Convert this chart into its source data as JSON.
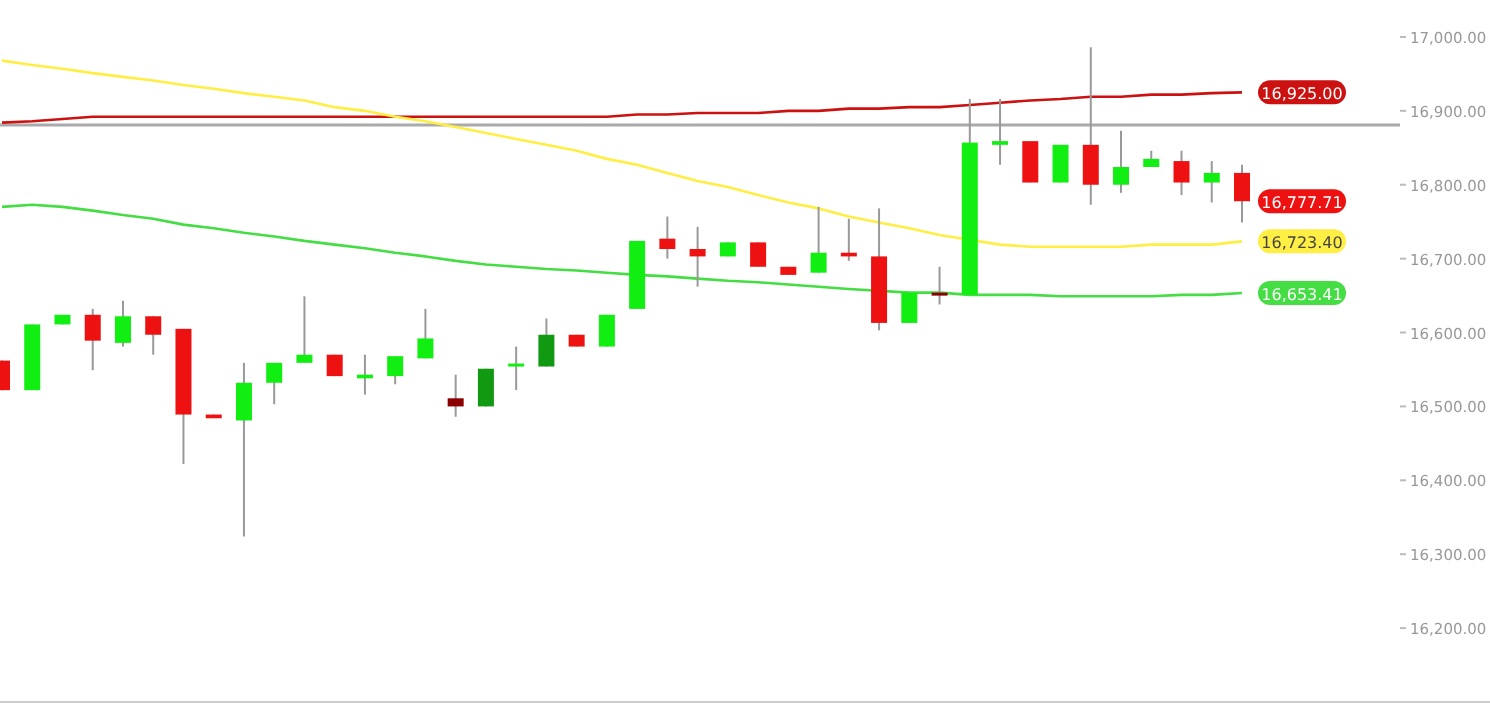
{
  "chart_data": {
    "type": "candlestick",
    "categories": [
      null,
      null,
      null,
      null,
      null,
      null,
      null,
      null,
      null,
      null,
      null,
      null,
      null,
      null,
      null,
      null,
      null,
      null,
      null,
      null,
      null,
      null,
      null,
      null,
      null,
      null,
      null,
      null,
      null,
      null,
      null,
      null,
      null,
      null,
      null,
      null,
      null,
      null,
      null,
      null,
      null,
      null
    ],
    "ohlc": [
      [
        16562,
        16562,
        16522,
        16522
      ],
      [
        16522,
        16611,
        16522,
        16611
      ],
      [
        16611,
        16624,
        16611,
        16624
      ],
      [
        16624,
        16632,
        16549,
        16589
      ],
      [
        16586,
        16643,
        16581,
        16622
      ],
      [
        16622,
        16622,
        16570,
        16597
      ],
      [
        16605,
        16605,
        16422,
        16489
      ],
      [
        16489,
        16489,
        16484,
        16484
      ],
      [
        16481,
        16559,
        16324,
        16532
      ],
      [
        16532,
        16559,
        16503,
        16559
      ],
      [
        16559,
        16649,
        16559,
        16570
      ],
      [
        16570,
        16570,
        16541,
        16541
      ],
      [
        16538,
        16570,
        16516,
        16543
      ],
      [
        16541,
        16568,
        16530,
        16568
      ],
      [
        16565,
        16632,
        16565,
        16592
      ],
      [
        16511,
        16543,
        16486,
        16500
      ],
      [
        16500,
        16551,
        16500,
        16551
      ],
      [
        16554,
        16581,
        16522,
        16558
      ],
      [
        16554,
        16619,
        16554,
        16597
      ],
      [
        16597,
        16597,
        16581,
        16581
      ],
      [
        16581,
        16624,
        16581,
        16624
      ],
      [
        16632,
        16724,
        16632,
        16724
      ],
      [
        16727,
        16757,
        16700,
        16713
      ],
      [
        16713,
        16743,
        16662,
        16703
      ],
      [
        16703,
        16722,
        16703,
        16722
      ],
      [
        16722,
        16722,
        16689,
        16689
      ],
      [
        16689,
        16689,
        16678,
        16678
      ],
      [
        16681,
        16770,
        16681,
        16708
      ],
      [
        16708,
        16754,
        16697,
        16703
      ],
      [
        16703,
        16768,
        16603,
        16613
      ],
      [
        16613,
        16654,
        16613,
        16654
      ],
      [
        16654,
        16689,
        16638,
        16651
      ],
      [
        16651,
        16916,
        16651,
        16857
      ],
      [
        16854,
        16916,
        16827,
        16859
      ],
      [
        16859,
        16859,
        16803,
        16803
      ],
      [
        16803,
        16854,
        16803,
        16854
      ],
      [
        16854,
        16986,
        16773,
        16800
      ],
      [
        16800,
        16873,
        16789,
        16824
      ],
      [
        16824,
        16846,
        16824,
        16835
      ],
      [
        16832,
        16846,
        16786,
        16803
      ],
      [
        16803,
        16832,
        16776,
        16816
      ],
      [
        16816,
        16827,
        16749,
        16777.71
      ]
    ],
    "colors": [
      "#ee1111",
      "#11ee11",
      "#11ee11",
      "#ee1111",
      "#11ee11",
      "#ee1111",
      "#ee1111",
      "#ee1111",
      "#11ee11",
      "#11ee11",
      "#11ee11",
      "#ee1111",
      "#11ee11",
      "#11ee11",
      "#11ee11",
      "#8b0000",
      "#119911",
      "#11ee11",
      "#119911",
      "#ee1111",
      "#11ee11",
      "#11ee11",
      "#ee1111",
      "#ee1111",
      "#11ee11",
      "#ee1111",
      "#ee1111",
      "#11ee11",
      "#ee1111",
      "#ee1111",
      "#11ee11",
      "#8b0000",
      "#11ee11",
      "#11ee11",
      "#ee1111",
      "#11ee11",
      "#ee1111",
      "#11ee11",
      "#11ee11",
      "#ee1111",
      "#11ee11",
      "#ee1111"
    ],
    "value_labels": [
      null,
      null,
      null,
      null,
      null,
      null,
      null,
      null,
      null,
      null,
      null,
      null,
      null,
      null,
      null,
      null,
      null,
      null,
      null,
      null,
      null,
      null,
      null,
      null,
      null,
      null,
      null,
      null,
      null,
      null,
      null,
      null,
      null,
      null,
      null,
      null,
      null,
      null,
      null,
      null,
      null,
      "16,777.71"
    ],
    "series": [
      {
        "type": "line",
        "color": "#cc1111",
        "values": [
          16884,
          16886,
          16889,
          16892,
          16892,
          16892,
          16892,
          16892,
          16892,
          16892,
          16892,
          16892,
          16892,
          16892,
          16892,
          16892,
          16892,
          16892,
          16892,
          16892,
          16892,
          16895,
          16895,
          16897,
          16897,
          16897,
          16900,
          16900,
          16903,
          16903,
          16905,
          16905,
          16908,
          16911,
          16914,
          16916,
          16919,
          16919,
          16922,
          16922,
          16924,
          16925
        ],
        "value_labels": [
          null,
          null,
          null,
          null,
          null,
          null,
          null,
          null,
          null,
          null,
          null,
          null,
          null,
          null,
          null,
          null,
          null,
          null,
          null,
          null,
          null,
          null,
          null,
          null,
          null,
          null,
          null,
          null,
          null,
          null,
          null,
          null,
          null,
          null,
          null,
          null,
          null,
          null,
          null,
          null,
          null,
          "16,925.00"
        ]
      },
      {
        "type": "line",
        "color": "#ffee44",
        "values": [
          16968,
          16962,
          16957,
          16951,
          16946,
          16941,
          16935,
          16930,
          16924,
          16919,
          16914,
          16905,
          16900,
          16892,
          16886,
          16878,
          16870,
          16862,
          16854,
          16846,
          16835,
          16827,
          16816,
          16805,
          16797,
          16786,
          16776,
          16768,
          16757,
          16749,
          16741,
          16732,
          null,
          16719,
          16716,
          16716,
          16716,
          16716,
          16719,
          16719,
          16719,
          16723.4
        ],
        "value_labels": [
          null,
          null,
          null,
          null,
          null,
          null,
          null,
          null,
          null,
          null,
          null,
          null,
          null,
          null,
          null,
          null,
          null,
          null,
          null,
          null,
          null,
          null,
          null,
          null,
          null,
          null,
          null,
          null,
          null,
          null,
          null,
          null,
          null,
          null,
          null,
          null,
          null,
          null,
          null,
          null,
          null,
          "16,723.40"
        ]
      },
      {
        "type": "line",
        "color": "#44dd44",
        "values": [
          16770,
          16773,
          16770,
          16765,
          16759,
          16754,
          16746,
          16741,
          16735,
          16730,
          16724,
          16719,
          16714,
          16708,
          16703,
          16697,
          16692,
          16689,
          16686,
          16684,
          16681,
          16678,
          16676,
          16673,
          16670,
          16668,
          16665,
          16662,
          16659,
          null,
          16654,
          16654,
          16651,
          16651,
          16651,
          16649,
          16649,
          16649,
          16649,
          16651,
          16651,
          16653.41
        ],
        "value_labels": [
          null,
          null,
          null,
          null,
          null,
          null,
          null,
          null,
          null,
          null,
          null,
          null,
          null,
          null,
          null,
          null,
          null,
          null,
          null,
          null,
          null,
          null,
          null,
          null,
          null,
          null,
          null,
          null,
          null,
          null,
          null,
          null,
          null,
          null,
          null,
          null,
          null,
          null,
          null,
          null,
          null,
          "16,653.41"
        ]
      }
    ],
    "ref_lines": [
      {
        "axis": "y",
        "value": 16881,
        "color": "#aaaaaa"
      }
    ],
    "ylim": [
      16100,
      17050
    ],
    "yticks": [
      {
        "value": 17000,
        "label": "17,000.00"
      },
      {
        "value": 16900,
        "label": "16,900.00"
      },
      {
        "value": 16800,
        "label": "16,800.00"
      },
      {
        "value": 16700,
        "label": "16,700.00"
      },
      {
        "value": 16600,
        "label": "16,600.00"
      },
      {
        "value": 16500,
        "label": "16,500.00"
      },
      {
        "value": 16400,
        "label": "16,400.00"
      },
      {
        "value": 16300,
        "label": "16,300.00"
      },
      {
        "value": 16200,
        "label": "16,200.00"
      }
    ],
    "tick_labels": "y"
  }
}
